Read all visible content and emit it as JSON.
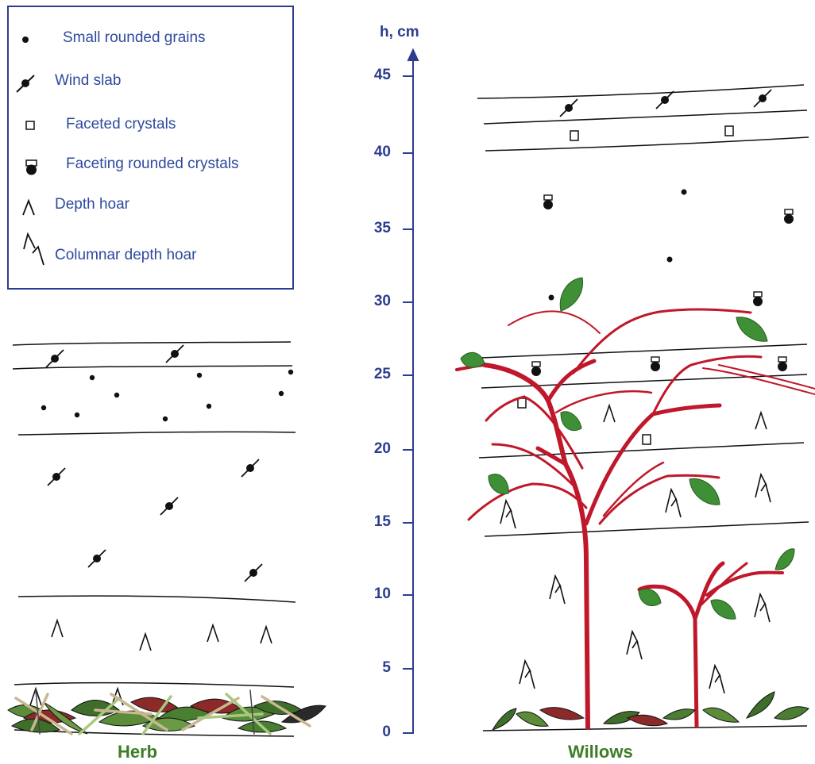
{
  "legend": {
    "items": [
      {
        "label": "Small rounded grains",
        "icon": "small-rounded-grain-icon"
      },
      {
        "label": "Wind slab",
        "icon": "wind-slab-icon"
      },
      {
        "label": "Faceted crystals",
        "icon": "faceted-crystal-icon"
      },
      {
        "label": "Faceting rounded crystals",
        "icon": "faceting-rounded-crystal-icon"
      },
      {
        "label": "Depth hoar",
        "icon": "depth-hoar-icon"
      },
      {
        "label": "Columnar depth hoar",
        "icon": "columnar-depth-hoar-icon"
      }
    ]
  },
  "axis": {
    "title": "h, cm",
    "ticks": [
      "0",
      "5",
      "10",
      "15",
      "20",
      "25",
      "30",
      "35",
      "40",
      "45"
    ]
  },
  "panels": {
    "herb": "Herb",
    "willows": "Willows"
  },
  "colors": {
    "axis": "#2c3d8f",
    "legend_text": "#2e4a9e",
    "branch": "#c0182a",
    "leaf": "#3e8f35",
    "panel_title": "#3e7d28"
  }
}
